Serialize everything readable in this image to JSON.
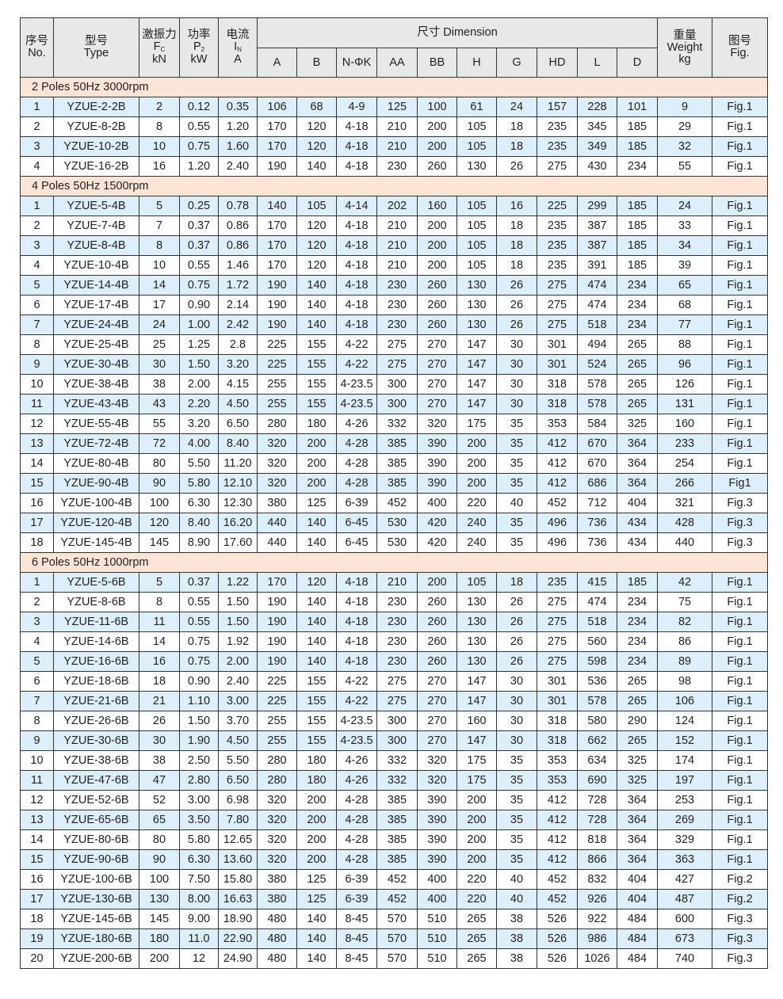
{
  "header": {
    "no": [
      "序号",
      "No."
    ],
    "type": [
      "型号",
      "Type"
    ],
    "fc": [
      "激振力",
      "F",
      "C",
      "kN"
    ],
    "p2": [
      "功率",
      "P",
      "2",
      "kW"
    ],
    "in": [
      "电流",
      "I",
      "N",
      "A"
    ],
    "dimension": "尺寸 Dimension",
    "dims": [
      "A",
      "B",
      "N-ΦK",
      "AA",
      "BB",
      "H",
      "G",
      "HD",
      "L",
      "D"
    ],
    "weight": [
      "重量",
      "Weight",
      "kg"
    ],
    "fig": [
      "图号",
      "Fig."
    ]
  },
  "sections": [
    {
      "title": "2 Poles  50Hz  3000rpm",
      "rows": [
        [
          "1",
          "YZUE-2-2B",
          "2",
          "0.12",
          "0.35",
          "106",
          "68",
          "4-9",
          "125",
          "100",
          "61",
          "24",
          "157",
          "228",
          "101",
          "9",
          "Fig.1"
        ],
        [
          "2",
          "YZUE-8-2B",
          "8",
          "0.55",
          "1.20",
          "170",
          "120",
          "4-18",
          "210",
          "200",
          "105",
          "18",
          "235",
          "345",
          "185",
          "29",
          "Fig.1"
        ],
        [
          "3",
          "YZUE-10-2B",
          "10",
          "0.75",
          "1.60",
          "170",
          "120",
          "4-18",
          "210",
          "200",
          "105",
          "18",
          "235",
          "349",
          "185",
          "32",
          "Fig.1"
        ],
        [
          "4",
          "YZUE-16-2B",
          "16",
          "1.20",
          "2.40",
          "190",
          "140",
          "4-18",
          "230",
          "260",
          "130",
          "26",
          "275",
          "430",
          "234",
          "55",
          "Fig.1"
        ]
      ]
    },
    {
      "title": "4 Poles  50Hz  1500rpm",
      "rows": [
        [
          "1",
          "YZUE-5-4B",
          "5",
          "0.25",
          "0.78",
          "140",
          "105",
          "4-14",
          "202",
          "160",
          "105",
          "16",
          "225",
          "299",
          "185",
          "24",
          "Fig.1"
        ],
        [
          "2",
          "YZUE-7-4B",
          "7",
          "0.37",
          "0.86",
          "170",
          "120",
          "4-18",
          "210",
          "200",
          "105",
          "18",
          "235",
          "387",
          "185",
          "33",
          "Fig.1"
        ],
        [
          "3",
          "YZUE-8-4B",
          "8",
          "0.37",
          "0.86",
          "170",
          "120",
          "4-18",
          "210",
          "200",
          "105",
          "18",
          "235",
          "387",
          "185",
          "34",
          "Fig.1"
        ],
        [
          "4",
          "YZUE-10-4B",
          "10",
          "0.55",
          "1.46",
          "170",
          "120",
          "4-18",
          "210",
          "200",
          "105",
          "18",
          "235",
          "391",
          "185",
          "39",
          "Fig.1"
        ],
        [
          "5",
          "YZUE-14-4B",
          "14",
          "0.75",
          "1.72",
          "190",
          "140",
          "4-18",
          "230",
          "260",
          "130",
          "26",
          "275",
          "474",
          "234",
          "65",
          "Fig.1"
        ],
        [
          "6",
          "YZUE-17-4B",
          "17",
          "0.90",
          "2.14",
          "190",
          "140",
          "4-18",
          "230",
          "260",
          "130",
          "26",
          "275",
          "474",
          "234",
          "68",
          "Fig.1"
        ],
        [
          "7",
          "YZUE-24-4B",
          "24",
          "1.00",
          "2.42",
          "190",
          "140",
          "4-18",
          "230",
          "260",
          "130",
          "26",
          "275",
          "518",
          "234",
          "77",
          "Fig.1"
        ],
        [
          "8",
          "YZUE-25-4B",
          "25",
          "1.25",
          "2.8",
          "225",
          "155",
          "4-22",
          "275",
          "270",
          "147",
          "30",
          "301",
          "494",
          "265",
          "88",
          "Fig.1"
        ],
        [
          "9",
          "YZUE-30-4B",
          "30",
          "1.50",
          "3.20",
          "225",
          "155",
          "4-22",
          "275",
          "270",
          "147",
          "30",
          "301",
          "524",
          "265",
          "96",
          "Fig.1"
        ],
        [
          "10",
          "YZUE-38-4B",
          "38",
          "2.00",
          "4.15",
          "255",
          "155",
          "4-23.5",
          "300",
          "270",
          "147",
          "30",
          "318",
          "578",
          "265",
          "126",
          "Fig.1"
        ],
        [
          "11",
          "YZUE-43-4B",
          "43",
          "2.20",
          "4.50",
          "255",
          "155",
          "4-23.5",
          "300",
          "270",
          "147",
          "30",
          "318",
          "578",
          "265",
          "131",
          "Fig.1"
        ],
        [
          "12",
          "YZUE-55-4B",
          "55",
          "3.20",
          "6.50",
          "280",
          "180",
          "4-26",
          "332",
          "320",
          "175",
          "35",
          "353",
          "584",
          "325",
          "160",
          "Fig.1"
        ],
        [
          "13",
          "YZUE-72-4B",
          "72",
          "4.00",
          "8.40",
          "320",
          "200",
          "4-28",
          "385",
          "390",
          "200",
          "35",
          "412",
          "670",
          "364",
          "233",
          "Fig.1"
        ],
        [
          "14",
          "YZUE-80-4B",
          "80",
          "5.50",
          "11.20",
          "320",
          "200",
          "4-28",
          "385",
          "390",
          "200",
          "35",
          "412",
          "670",
          "364",
          "254",
          "Fig.1"
        ],
        [
          "15",
          "YZUE-90-4B",
          "90",
          "5.80",
          "12.10",
          "320",
          "200",
          "4-28",
          "385",
          "390",
          "200",
          "35",
          "412",
          "686",
          "364",
          "266",
          "Fig1"
        ],
        [
          "16",
          "YZUE-100-4B",
          "100",
          "6.30",
          "12.30",
          "380",
          "125",
          "6-39",
          "452",
          "400",
          "220",
          "40",
          "452",
          "712",
          "404",
          "321",
          "Fig.3"
        ],
        [
          "17",
          "YZUE-120-4B",
          "120",
          "8.40",
          "16.20",
          "440",
          "140",
          "6-45",
          "530",
          "420",
          "240",
          "35",
          "496",
          "736",
          "434",
          "428",
          "Fig.3"
        ],
        [
          "18",
          "YZUE-145-4B",
          "145",
          "8.90",
          "17.60",
          "440",
          "140",
          "6-45",
          "530",
          "420",
          "240",
          "35",
          "496",
          "736",
          "434",
          "440",
          "Fig.3"
        ]
      ]
    },
    {
      "title": "6 Poles  50Hz  1000rpm",
      "rows": [
        [
          "1",
          "YZUE-5-6B",
          "5",
          "0.37",
          "1.22",
          "170",
          "120",
          "4-18",
          "210",
          "200",
          "105",
          "18",
          "235",
          "415",
          "185",
          "42",
          "Fig.1"
        ],
        [
          "2",
          "YZUE-8-6B",
          "8",
          "0.55",
          "1.50",
          "190",
          "140",
          "4-18",
          "230",
          "260",
          "130",
          "26",
          "275",
          "474",
          "234",
          "75",
          "Fig.1"
        ],
        [
          "3",
          "YZUE-11-6B",
          "11",
          "0.55",
          "1.50",
          "190",
          "140",
          "4-18",
          "230",
          "260",
          "130",
          "26",
          "275",
          "518",
          "234",
          "82",
          "Fig.1"
        ],
        [
          "4",
          "YZUE-14-6B",
          "14",
          "0.75",
          "1.92",
          "190",
          "140",
          "4-18",
          "230",
          "260",
          "130",
          "26",
          "275",
          "560",
          "234",
          "86",
          "Fig.1"
        ],
        [
          "5",
          "YZUE-16-6B",
          "16",
          "0.75",
          "2.00",
          "190",
          "140",
          "4-18",
          "230",
          "260",
          "130",
          "26",
          "275",
          "598",
          "234",
          "89",
          "Fig.1"
        ],
        [
          "6",
          "YZUE-18-6B",
          "18",
          "0.90",
          "2.40",
          "225",
          "155",
          "4-22",
          "275",
          "270",
          "147",
          "30",
          "301",
          "536",
          "265",
          "98",
          "Fig.1"
        ],
        [
          "7",
          "YZUE-21-6B",
          "21",
          "1.10",
          "3.00",
          "225",
          "155",
          "4-22",
          "275",
          "270",
          "147",
          "30",
          "301",
          "578",
          "265",
          "106",
          "Fig.1"
        ],
        [
          "8",
          "YZUE-26-6B",
          "26",
          "1.50",
          "3.70",
          "255",
          "155",
          "4-23.5",
          "300",
          "270",
          "160",
          "30",
          "318",
          "580",
          "290",
          "124",
          "Fig.1"
        ],
        [
          "9",
          "YZUE-30-6B",
          "30",
          "1.90",
          "4.50",
          "255",
          "155",
          "4-23.5",
          "300",
          "270",
          "147",
          "30",
          "318",
          "662",
          "265",
          "152",
          "Fig.1"
        ],
        [
          "10",
          "YZUE-38-6B",
          "38",
          "2.50",
          "5.50",
          "280",
          "180",
          "4-26",
          "332",
          "320",
          "175",
          "35",
          "353",
          "634",
          "325",
          "174",
          "Fig.1"
        ],
        [
          "11",
          "YZUE-47-6B",
          "47",
          "2.80",
          "6.50",
          "280",
          "180",
          "4-26",
          "332",
          "320",
          "175",
          "35",
          "353",
          "690",
          "325",
          "197",
          "Fig.1"
        ],
        [
          "12",
          "YZUE-52-6B",
          "52",
          "3.00",
          "6.98",
          "320",
          "200",
          "4-28",
          "385",
          "390",
          "200",
          "35",
          "412",
          "728",
          "364",
          "253",
          "Fig.1"
        ],
        [
          "13",
          "YZUE-65-6B",
          "65",
          "3.50",
          "7.80",
          "320",
          "200",
          "4-28",
          "385",
          "390",
          "200",
          "35",
          "412",
          "728",
          "364",
          "269",
          "Fig.1"
        ],
        [
          "14",
          "YZUE-80-6B",
          "80",
          "5.80",
          "12.65",
          "320",
          "200",
          "4-28",
          "385",
          "390",
          "200",
          "35",
          "412",
          "818",
          "364",
          "329",
          "Fig.1"
        ],
        [
          "15",
          "YZUE-90-6B",
          "90",
          "6.30",
          "13.60",
          "320",
          "200",
          "4-28",
          "385",
          "390",
          "200",
          "35",
          "412",
          "866",
          "364",
          "363",
          "Fig.1"
        ],
        [
          "16",
          "YZUE-100-6B",
          "100",
          "7.50",
          "15.80",
          "380",
          "125",
          "6-39",
          "452",
          "400",
          "220",
          "40",
          "452",
          "832",
          "404",
          "427",
          "Fig.2"
        ],
        [
          "17",
          "YZUE-130-6B",
          "130",
          "8.00",
          "16.63",
          "380",
          "125",
          "6-39",
          "452",
          "400",
          "220",
          "40",
          "452",
          "926",
          "404",
          "487",
          "Fig.2"
        ],
        [
          "18",
          "YZUE-145-6B",
          "145",
          "9.00",
          "18.90",
          "480",
          "140",
          "8-45",
          "570",
          "510",
          "265",
          "38",
          "526",
          "922",
          "484",
          "600",
          "Fig.3"
        ],
        [
          "19",
          "YZUE-180-6B",
          "180",
          "11.0",
          "22.90",
          "480",
          "140",
          "8-45",
          "570",
          "510",
          "265",
          "38",
          "526",
          "986",
          "484",
          "673",
          "Fig.3"
        ],
        [
          "20",
          "YZUE-200-6B",
          "200",
          "12",
          "24.90",
          "480",
          "140",
          "8-45",
          "570",
          "510",
          "265",
          "38",
          "526",
          "1026",
          "484",
          "740",
          "Fig.3"
        ]
      ]
    }
  ],
  "colors": {
    "header": "#e8e8e8",
    "section": "#fce4d6",
    "odd_row": "#ddeffa",
    "border": "#333333"
  }
}
